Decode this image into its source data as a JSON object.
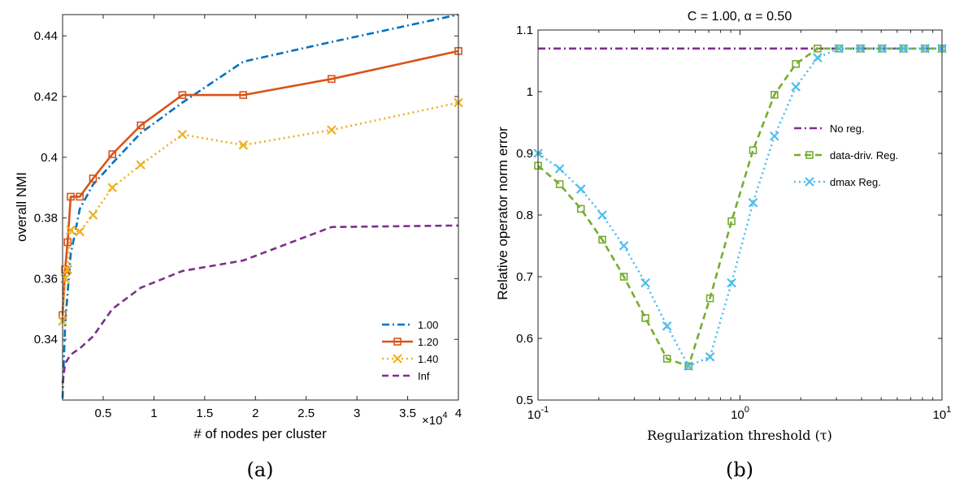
{
  "panels": {
    "a": "(a)",
    "b": "(b)"
  },
  "chart_data": [
    {
      "type": "line",
      "panel": "(a)",
      "title": "",
      "xlabel": "# of nodes per cluster",
      "ylabel": "overall NMI",
      "x_multiplier_label": "×10",
      "x_multiplier_exp": "4",
      "xlim": [
        1000,
        40000
      ],
      "ylim": [
        0.32,
        0.447
      ],
      "xticks": [
        5000,
        10000,
        15000,
        20000,
        25000,
        30000,
        35000,
        40000
      ],
      "xtick_labels": [
        "0.5",
        "1",
        "1.5",
        "2",
        "2.5",
        "3",
        "3.5",
        "4"
      ],
      "yticks": [
        0.34,
        0.36,
        0.38,
        0.4,
        0.42,
        0.44
      ],
      "ytick_labels": [
        "0.34",
        "0.36",
        "0.38",
        "0.4",
        "0.42",
        "0.44"
      ],
      "legend_position": "bottom-right",
      "series": [
        {
          "name": "1.00",
          "color": "#0072bd",
          "dash": "dashdot",
          "marker": "none",
          "x": [
            1000,
            1250,
            1800,
            2700,
            4000,
            5900,
            8700,
            12800,
            18800,
            27500,
            40000
          ],
          "y": [
            0.3205,
            0.345,
            0.368,
            0.383,
            0.391,
            0.398,
            0.408,
            0.418,
            0.4315,
            0.438,
            0.447
          ]
        },
        {
          "name": "1.20",
          "color": "#d95319",
          "dash": "solid",
          "marker": "square",
          "x": [
            1000,
            1250,
            1500,
            1800,
            2700,
            4000,
            5900,
            8700,
            12800,
            18800,
            27500,
            40000
          ],
          "y": [
            0.348,
            0.363,
            0.372,
            0.387,
            0.387,
            0.393,
            0.401,
            0.4105,
            0.4205,
            0.4205,
            0.4258,
            0.435
          ]
        },
        {
          "name": "1.40",
          "color": "#edb120",
          "dash": "dotted",
          "marker": "x",
          "x": [
            1000,
            1250,
            1500,
            1800,
            2700,
            4000,
            5900,
            8700,
            12800,
            18800,
            27500,
            40000
          ],
          "y": [
            0.346,
            0.36,
            0.363,
            0.376,
            0.3755,
            0.381,
            0.39,
            0.3975,
            0.4075,
            0.404,
            0.409,
            0.418
          ]
        },
        {
          "name": "Inf",
          "color": "#7e2f8e",
          "dash": "dashed",
          "marker": "none",
          "x": [
            1000,
            1250,
            1800,
            2700,
            4000,
            5900,
            8700,
            12800,
            18800,
            27500,
            40000
          ],
          "y": [
            0.3255,
            0.332,
            0.335,
            0.337,
            0.341,
            0.35,
            0.357,
            0.3625,
            0.366,
            0.377,
            0.3775
          ]
        }
      ]
    },
    {
      "type": "line",
      "panel": "(b)",
      "title": "C = 1.00,   α = 0.50",
      "xlabel": "Regularization threshold (τ)",
      "ylabel": "Relative operator norm error",
      "xscale": "log",
      "xlim": [
        0.1,
        10
      ],
      "ylim": [
        0.5,
        1.1
      ],
      "xtick_base": "10",
      "xtick_exps": [
        "-1",
        "0",
        "1"
      ],
      "yticks": [
        0.5,
        0.6,
        0.7,
        0.8,
        0.9,
        1.0,
        1.1
      ],
      "ytick_labels": [
        "0.5",
        "0.6",
        "0.7",
        "0.8",
        "0.9",
        "1",
        "1.1"
      ],
      "legend_position": "middle-right",
      "series": [
        {
          "name": "No reg.",
          "color": "#7e2f8e",
          "dash": "dashdot",
          "marker": "none",
          "x": [
            0.1,
            10
          ],
          "y": [
            1.07,
            1.07
          ]
        },
        {
          "name": "data-driv. Reg.",
          "color": "#77ac30",
          "dash": "dashed",
          "marker": "square",
          "x": [
            0.1,
            0.128,
            0.163,
            0.208,
            0.266,
            0.34,
            0.435,
            0.556,
            0.71,
            0.908,
            1.16,
            1.48,
            1.89,
            2.42,
            3.09,
            3.95,
            5.05,
            6.45,
            8.24,
            10
          ],
          "y": [
            0.88,
            0.85,
            0.81,
            0.76,
            0.7,
            0.633,
            0.567,
            0.555,
            0.665,
            0.79,
            0.905,
            0.995,
            1.045,
            1.07,
            1.07,
            1.07,
            1.07,
            1.07,
            1.07,
            1.07
          ]
        },
        {
          "name": "dmax Reg.",
          "color": "#4dbeee",
          "dash": "dotted",
          "marker": "x",
          "x": [
            0.1,
            0.128,
            0.163,
            0.208,
            0.266,
            0.34,
            0.435,
            0.556,
            0.71,
            0.908,
            1.16,
            1.48,
            1.89,
            2.42,
            3.09,
            3.95,
            5.05,
            6.45,
            8.24,
            10
          ],
          "y": [
            0.9,
            0.875,
            0.842,
            0.8,
            0.75,
            0.69,
            0.62,
            0.555,
            0.57,
            0.69,
            0.82,
            0.928,
            1.008,
            1.055,
            1.07,
            1.07,
            1.07,
            1.07,
            1.07,
            1.07
          ]
        }
      ]
    }
  ]
}
